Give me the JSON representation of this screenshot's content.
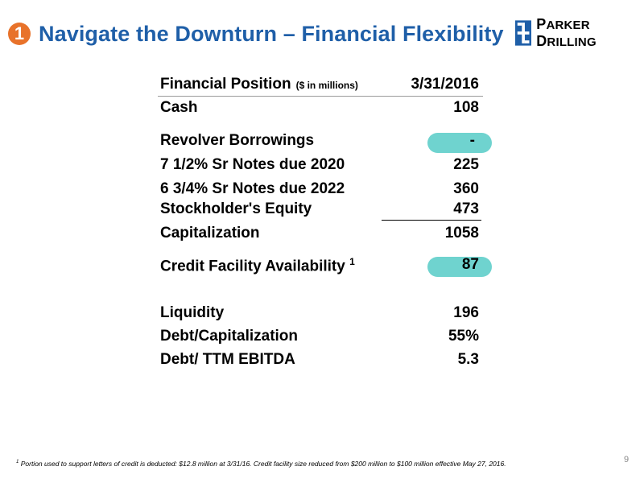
{
  "header": {
    "badge": "1",
    "title": "Navigate the Downturn – Financial Flexibility",
    "logo_text_1": "P",
    "logo_text_2": "ARKER ",
    "logo_text_3": "D",
    "logo_text_4": "RILLING",
    "brand_color": "#1f5fa8",
    "badge_color": "#e8722a"
  },
  "table": {
    "header_label": "Financial Position",
    "header_unit": "($ in millions)",
    "header_date": "3/31/2016",
    "rows": [
      {
        "label": "Cash",
        "value": "108"
      },
      {
        "label": "Revolver Borrowings",
        "value": "-"
      },
      {
        "label": "7 1/2% Sr Notes due 2020",
        "value": "225"
      },
      {
        "label": "6 3/4% Sr Notes due 2022",
        "value": "360"
      },
      {
        "label": "Stockholder's Equity",
        "value": "473"
      },
      {
        "label": "Capitalization",
        "value": "1058"
      },
      {
        "label": "Credit Facility Availability",
        "sup": "1",
        "value": "87"
      },
      {
        "label": "Liquidity",
        "value": "196"
      },
      {
        "label": "Debt/Capitalization",
        "value": "55%"
      },
      {
        "label": "Debt/ TTM EBITDA",
        "value": "5.3"
      }
    ],
    "highlight_color": "#6fd3cf"
  },
  "footnote": {
    "marker": "1",
    "text": "Portion used to support letters of credit is deducted: $12.8 million at 3/31/16. Credit facility size reduced from $200 million to $100 million effective May 27, 2016."
  },
  "page_number": "9"
}
